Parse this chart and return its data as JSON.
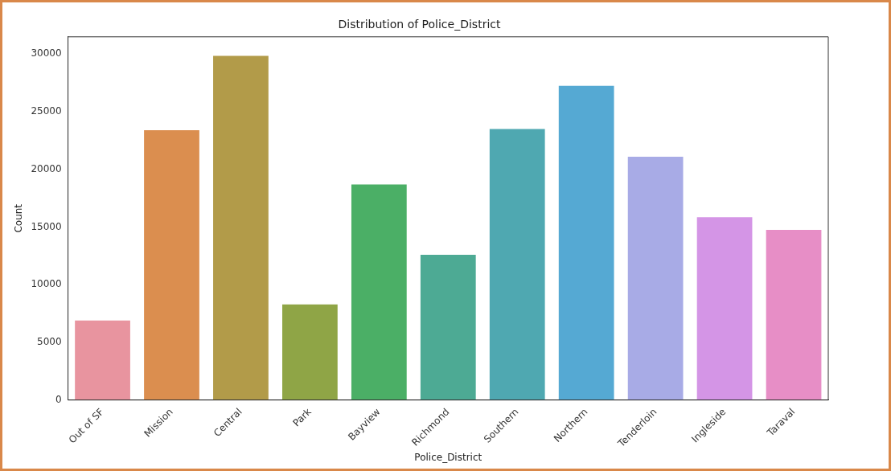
{
  "chart_data": {
    "type": "bar",
    "title": "Distribution of Police_District",
    "xlabel": "Police_District",
    "ylabel": "Count",
    "categories": [
      "Out of SF",
      "Mission",
      "Central",
      "Park",
      "Bayview",
      "Richmond",
      "Southern",
      "Northern",
      "Tenderloin",
      "Ingleside",
      "Taraval"
    ],
    "values": [
      6900,
      23400,
      29850,
      8300,
      18700,
      12600,
      23500,
      27250,
      21100,
      15850,
      14750
    ],
    "colors": [
      "#e8949f",
      "#db8e4f",
      "#b29b49",
      "#8fa546",
      "#4baf66",
      "#4daa94",
      "#4fa8b1",
      "#55a9d3",
      "#a8abe6",
      "#d495e6",
      "#e78ec6"
    ],
    "ylim": [
      0,
      31500
    ],
    "yticks": [
      0,
      5000,
      10000,
      15000,
      20000,
      25000,
      30000
    ],
    "grid": false,
    "legend": false
  }
}
